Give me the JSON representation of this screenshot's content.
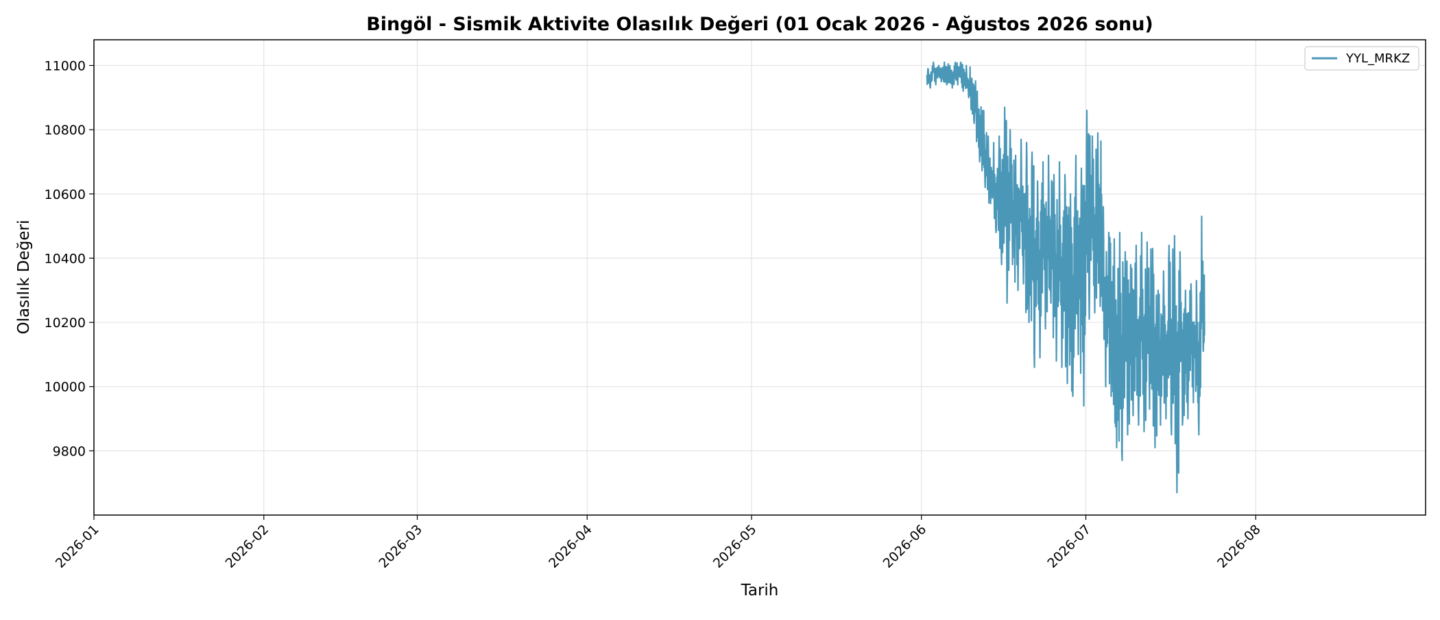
{
  "chart_data": {
    "type": "line",
    "title": "Bingöl - Sismik Aktivite Olasılık Değeri (01 Ocak 2026 - Ağustos 2026 sonu)",
    "xlabel": "Tarih",
    "ylabel": "Olasılık Değeri",
    "xlim": [
      "2026-01-01",
      "2026-08-31"
    ],
    "ylim": [
      9600,
      11080
    ],
    "x_ticks": [
      "2026-01",
      "2026-02",
      "2026-03",
      "2026-04",
      "2026-05",
      "2026-06",
      "2026-07",
      "2026-08"
    ],
    "y_ticks": [
      9800,
      10000,
      10200,
      10400,
      10600,
      10800,
      11000
    ],
    "grid": true,
    "legend_position": "top-right",
    "series": [
      {
        "name": "YYL_MRKZ",
        "color": "#4a97b8",
        "x": [
          "2026-06-02",
          "2026-06-03",
          "2026-06-04",
          "2026-06-05",
          "2026-06-06",
          "2026-06-07",
          "2026-06-08",
          "2026-06-09",
          "2026-06-10",
          "2026-06-11",
          "2026-06-12",
          "2026-06-13",
          "2026-06-14",
          "2026-06-15",
          "2026-06-16",
          "2026-06-17",
          "2026-06-18",
          "2026-06-19",
          "2026-06-20",
          "2026-06-21",
          "2026-06-22",
          "2026-06-23",
          "2026-06-24",
          "2026-06-25",
          "2026-06-26",
          "2026-06-27",
          "2026-06-28",
          "2026-06-29",
          "2026-06-30",
          "2026-07-01",
          "2026-07-02",
          "2026-07-03",
          "2026-07-04",
          "2026-07-05",
          "2026-07-06",
          "2026-07-07",
          "2026-07-08",
          "2026-07-09",
          "2026-07-10",
          "2026-07-11",
          "2026-07-12",
          "2026-07-13",
          "2026-07-14",
          "2026-07-15",
          "2026-07-16",
          "2026-07-17",
          "2026-07-18",
          "2026-07-19",
          "2026-07-20",
          "2026-07-21",
          "2026-07-22"
        ],
        "max": [
          10990,
          11010,
          11000,
          11010,
          11000,
          11010,
          11010,
          11000,
          10960,
          10920,
          10860,
          10780,
          10760,
          10780,
          10870,
          10800,
          10720,
          10770,
          10760,
          10730,
          10640,
          10700,
          10720,
          10660,
          10700,
          10660,
          10600,
          10720,
          10680,
          10860,
          10780,
          10790,
          10560,
          10480,
          10460,
          10480,
          10420,
          10380,
          10440,
          10480,
          10450,
          10430,
          10300,
          10360,
          10440,
          10470,
          10420,
          10300,
          10320,
          10330,
          10530
        ],
        "min": [
          10930,
          10940,
          10950,
          10940,
          10930,
          10940,
          10920,
          10900,
          10820,
          10700,
          10620,
          10570,
          10480,
          10380,
          10260,
          10380,
          10300,
          10320,
          10200,
          10060,
          10090,
          10180,
          10260,
          10080,
          10060,
          10010,
          9970,
          10100,
          9940,
          10210,
          10230,
          10250,
          10000,
          9970,
          9810,
          9770,
          9850,
          9910,
          9880,
          9860,
          9930,
          9810,
          9880,
          9900,
          9850,
          9670,
          9880,
          9900,
          9950,
          9850,
          10110
        ],
        "close": [
          10960,
          10985,
          10975,
          10980,
          10970,
          10985,
          10970,
          10950,
          10880,
          10800,
          10720,
          10650,
          10600,
          10580,
          10560,
          10560,
          10500,
          10540,
          10480,
          10400,
          10380,
          10420,
          10470,
          10380,
          10360,
          10330,
          10270,
          10400,
          10300,
          10540,
          10500,
          10480,
          10260,
          10220,
          10140,
          10110,
          10130,
          10140,
          10160,
          10180,
          10190,
          10110,
          10100,
          10120,
          10140,
          10050,
          10140,
          10110,
          10140,
          10090,
          10220
        ]
      }
    ]
  }
}
